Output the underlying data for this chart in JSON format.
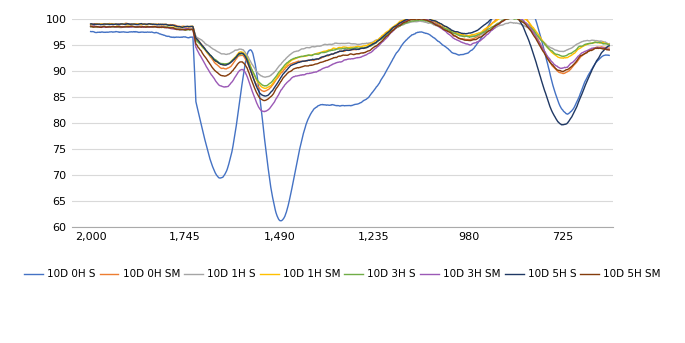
{
  "title": "",
  "xlabel": "",
  "ylabel": "",
  "xlim_left": 2050,
  "xlim_right": 590,
  "ylim": [
    60,
    100
  ],
  "yticks": [
    60,
    65,
    70,
    75,
    80,
    85,
    90,
    95,
    100
  ],
  "xticks": [
    2000,
    1745,
    1490,
    1235,
    980,
    725
  ],
  "xticklabels": [
    "2,000",
    "1,745",
    "1,490",
    "1,235",
    "980",
    "725"
  ],
  "series": [
    {
      "label": "10D 0H S",
      "color": "#4472C4"
    },
    {
      "label": "10D 0H SM",
      "color": "#ED7D31"
    },
    {
      "label": "10D 1H S",
      "color": "#A5A5A5"
    },
    {
      "label": "10D 1H SM",
      "color": "#FFC000"
    },
    {
      "label": "10D 3H S",
      "color": "#70AD47"
    },
    {
      "label": "10D 3H SM",
      "color": "#9B59B6"
    },
    {
      "label": "10D 5H S",
      "color": "#1F3864"
    },
    {
      "label": "10D 5H SM",
      "color": "#843C0C"
    }
  ],
  "background_color": "#FFFFFF",
  "grid_color": "#D9D9D9",
  "line_width": 1.0
}
